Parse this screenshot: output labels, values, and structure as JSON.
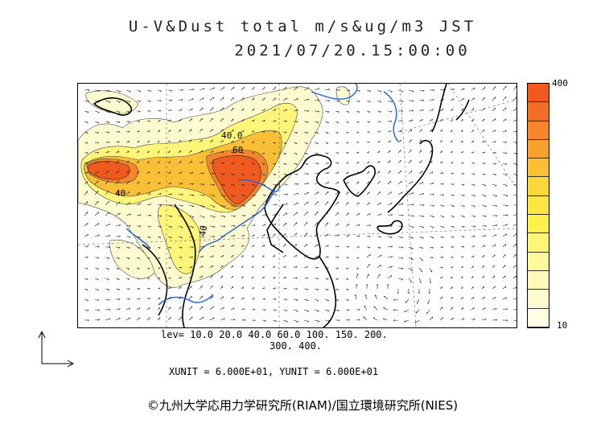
{
  "title": {
    "line1": "U-V&Dust total m/s&ug/m3 JST",
    "line2": "2021/07/20.15:00:00"
  },
  "colorbar": {
    "max_label": "400",
    "min_label": "10",
    "colors": [
      "#f05a1e",
      "#f26e26",
      "#f5862e",
      "#f8a030",
      "#fbbf35",
      "#fdd73a",
      "#fde641",
      "#fff14a",
      "#fff578",
      "#fff99a",
      "#fffab8",
      "#fffbd0",
      "#fffde3"
    ]
  },
  "legend": {
    "levels_line1": "lev= 10.0 20.0 40.0 60.0 100. 150. 200.",
    "levels_line2": "300. 400.",
    "units": "XUNIT = 6.000E+01, YUNIT = 6.000E+01"
  },
  "map_labels": {
    "contour_40_top": "40.0",
    "contour_60": "60",
    "contour_40_left": "40",
    "contour_40_lower": "40"
  },
  "copyright": "©九州大学応用力学研究所(RIAM)/国立環境研究所(NIES)"
}
